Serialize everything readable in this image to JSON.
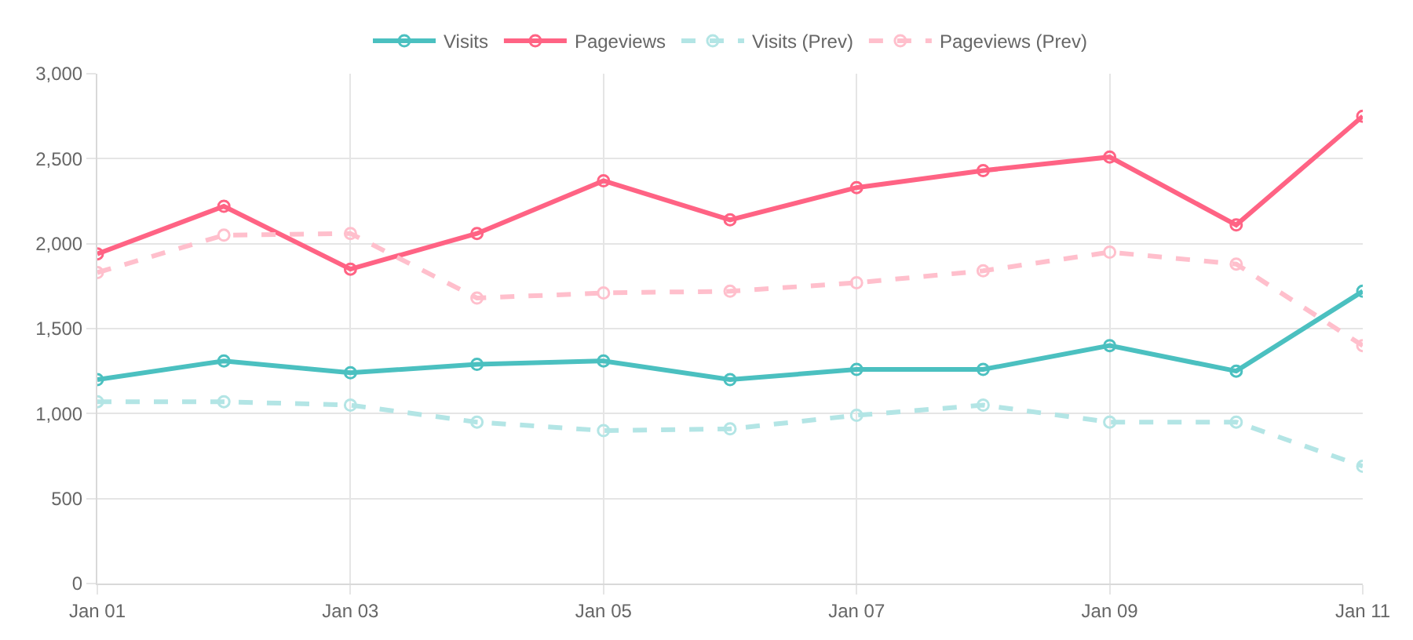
{
  "chart_data": {
    "type": "line",
    "x": [
      "--01-01",
      "--01-02",
      "--01-03",
      "--01-04",
      "--01-05",
      "--01-06",
      "--01-07",
      "--01-08",
      "--01-09",
      "--01-10",
      "--01-11"
    ],
    "series": [
      {
        "name": "Visits",
        "color": "#4bc0c0",
        "line_style": "solid",
        "values": [
          1200,
          1310,
          1240,
          1290,
          1310,
          1200,
          1260,
          1260,
          1400,
          1250,
          1720
        ]
      },
      {
        "name": "Pageviews",
        "color": "#ff6384",
        "line_style": "solid",
        "values": [
          1940,
          2220,
          1850,
          2060,
          2370,
          2140,
          2330,
          2430,
          2510,
          2110,
          2750
        ]
      },
      {
        "name": "Visits (Prev)",
        "color": "#b3e5e5",
        "line_style": "dashed",
        "values": [
          1070,
          1070,
          1050,
          950,
          900,
          910,
          990,
          1050,
          950,
          950,
          690
        ]
      },
      {
        "name": "Pageviews (Prev)",
        "color": "#ffbfcc",
        "line_style": "dashed",
        "values": [
          1830,
          2050,
          2060,
          1680,
          1710,
          1720,
          1770,
          1840,
          1950,
          1880,
          1400
        ]
      }
    ],
    "xlim": [
      "--01-01",
      "--01-11"
    ],
    "xticks": [
      {
        "value": "--01-01",
        "label": "Jan 01"
      },
      {
        "value": "--01-03",
        "label": "Jan 03"
      },
      {
        "value": "--01-05",
        "label": "Jan 05"
      },
      {
        "value": "--01-07",
        "label": "Jan 07"
      },
      {
        "value": "--01-09",
        "label": "Jan 09"
      },
      {
        "value": "--01-11",
        "label": "Jan 11"
      }
    ],
    "ylim": [
      0,
      3000
    ],
    "yticks": [
      {
        "value": 0,
        "label": "0"
      },
      {
        "value": 500,
        "label": "500"
      },
      {
        "value": 1000,
        "label": "1,000"
      },
      {
        "value": 1500,
        "label": "1,500"
      },
      {
        "value": 2000,
        "label": "2,000"
      },
      {
        "value": 2500,
        "label": "2,500"
      },
      {
        "value": 3000,
        "label": "3,000"
      }
    ],
    "grid": true,
    "legend": "top",
    "marker": "circle"
  }
}
